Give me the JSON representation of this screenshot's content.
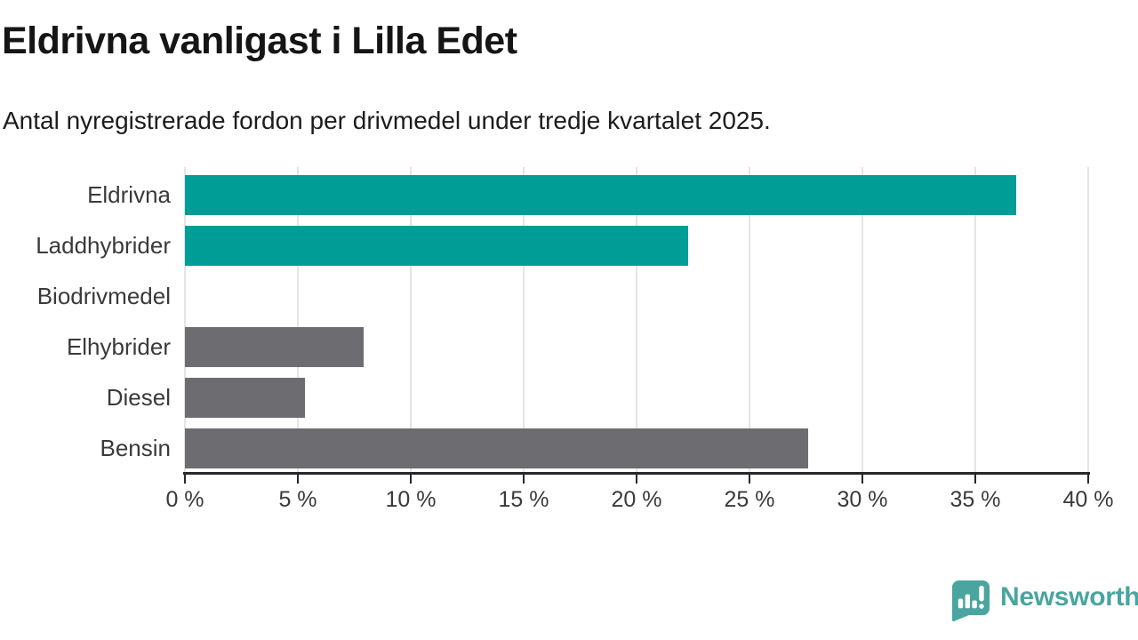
{
  "title": "Eldrivna vanligast i Lilla Edet",
  "subtitle": "Antal nyregistrerade fordon per drivmedel under tredje kvartalet 2025.",
  "chart_data": {
    "type": "bar",
    "orientation": "horizontal",
    "categories": [
      "Eldrivna",
      "Laddhybrider",
      "Biodrivmedel",
      "Elhybrider",
      "Diesel",
      "Bensin"
    ],
    "values": [
      36.8,
      22.3,
      0,
      7.9,
      5.3,
      27.6
    ],
    "unit": "%",
    "xlim": [
      0,
      40
    ],
    "x_ticks": [
      "0 %",
      "5 %",
      "10 %",
      "15 %",
      "20 %",
      "25 %",
      "30 %",
      "35 %",
      "40 %"
    ],
    "bar_colors": [
      "#009c96",
      "#009c96",
      "#6c6c71",
      "#6c6c71",
      "#6c6c71",
      "#6c6c71"
    ],
    "highlight_color": "#009c96",
    "default_color": "#6c6c71",
    "grid": true,
    "gridline_color": "#e4e4e6",
    "axis_color": "#28282b",
    "legend": "none"
  },
  "branding": {
    "logo_text": "Newsworthy",
    "logo_color": "#4aa5a0",
    "logo_icon": "bar-chart-speech-bubble-icon"
  }
}
